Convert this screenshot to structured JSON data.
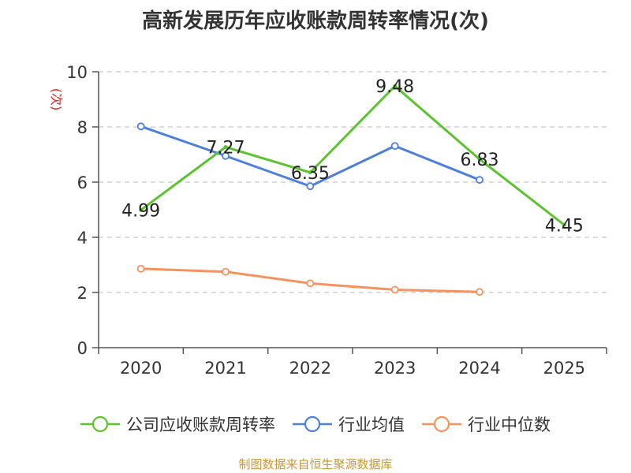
{
  "chart_data": {
    "type": "line",
    "title": "高新发展历年应收账款周转率情况(次)",
    "ylabel": "(次)",
    "xlabel": "",
    "categories": [
      "2020",
      "2021",
      "2022",
      "2023",
      "2024",
      "2025"
    ],
    "ylim": [
      0,
      10
    ],
    "yticks": [
      0,
      2,
      4,
      6,
      8,
      10
    ],
    "grid": true,
    "legend_position": "bottom",
    "series": [
      {
        "name": "公司应收账款周转率",
        "color": "#5cc22f",
        "values": [
          4.99,
          7.27,
          6.35,
          9.48,
          6.83,
          4.45
        ],
        "labels": [
          "4.99",
          "7.27",
          "6.35",
          "9.48",
          "6.83",
          "4.45"
        ]
      },
      {
        "name": "行业均值",
        "color": "#4e7fd9",
        "values": [
          8.02,
          6.95,
          5.85,
          7.31,
          6.08,
          null
        ]
      },
      {
        "name": "行业中位数",
        "color": "#f4935f",
        "values": [
          2.86,
          2.75,
          2.33,
          2.1,
          2.02,
          null
        ]
      }
    ]
  },
  "source": "制图数据来自恒生聚源数据库"
}
